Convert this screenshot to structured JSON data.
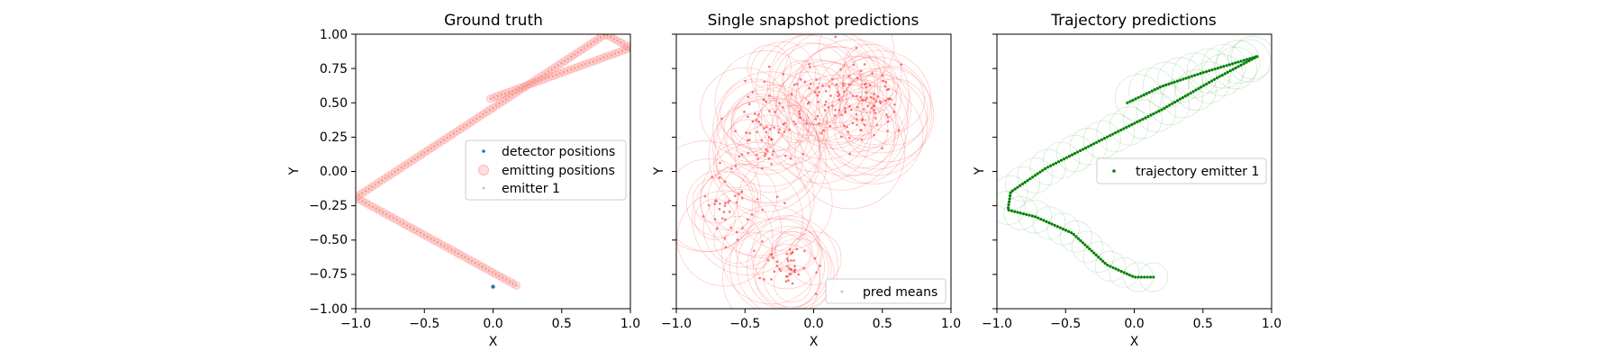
{
  "chart_data": [
    {
      "type": "scatter",
      "title": "Ground truth",
      "xlabel": "X",
      "ylabel": "Y",
      "xlim": [
        -1.0,
        1.0
      ],
      "ylim": [
        -1.0,
        1.0
      ],
      "xticks": [
        "−1.0",
        "−0.5",
        "0.0",
        "0.5",
        "1.0"
      ],
      "yticks": [
        "−1.00",
        "−0.75",
        "−0.50",
        "−0.25",
        "0.00",
        "0.25",
        "0.50",
        "0.75",
        "1.00"
      ],
      "legend_position": "center-right",
      "legend": [
        "detector positions",
        "emitting positions",
        "emitter 1"
      ],
      "series": [
        {
          "name": "detector positions",
          "color": "#1f77b4",
          "points": [
            [
              0.0,
              -0.84
            ]
          ]
        },
        {
          "name": "emitting positions",
          "color": "#ff9999",
          "path": [
            [
              0.17,
              -0.83
            ],
            [
              -1.0,
              -0.19
            ],
            [
              0.82,
              1.0
            ],
            [
              1.0,
              0.9
            ],
            [
              -0.02,
              0.53
            ]
          ]
        },
        {
          "name": "emitter 1",
          "color": "#e8a080",
          "path": [
            [
              0.17,
              -0.83
            ],
            [
              -1.0,
              -0.19
            ],
            [
              0.82,
              1.0
            ],
            [
              1.0,
              0.9
            ],
            [
              -0.02,
              0.53
            ]
          ]
        }
      ]
    },
    {
      "type": "scatter",
      "title": "Single snapshot predictions",
      "xlabel": "X",
      "ylabel": "Y",
      "xlim": [
        -1.0,
        1.0
      ],
      "ylim": [
        -1.0,
        1.0
      ],
      "xticks": [
        "−1.0",
        "−0.5",
        "0.0",
        "0.5",
        "1.0"
      ],
      "legend_position": "lower-right",
      "legend": [
        "pred means"
      ],
      "series": [
        {
          "name": "pred means",
          "color": "#ff4d4d",
          "clusters": [
            {
              "center": [
                -0.6,
                -0.3
              ],
              "spread": [
                0.1,
                0.18
              ],
              "count": 40
            },
            {
              "center": [
                -0.2,
                -0.7
              ],
              "spread": [
                0.12,
                0.08
              ],
              "count": 45
            },
            {
              "center": [
                -0.35,
                0.3
              ],
              "spread": [
                0.15,
                0.2
              ],
              "count": 55
            },
            {
              "center": [
                0.1,
                0.52
              ],
              "spread": [
                0.22,
                0.15
              ],
              "count": 90
            },
            {
              "center": [
                0.4,
                0.5
              ],
              "spread": [
                0.12,
                0.12
              ],
              "count": 50
            }
          ]
        }
      ]
    },
    {
      "type": "scatter",
      "title": "Trajectory predictions",
      "xlabel": "X",
      "ylabel": "Y",
      "xlim": [
        -1.0,
        1.0
      ],
      "ylim": [
        -1.0,
        1.0
      ],
      "xticks": [
        "−1.0",
        "−0.5",
        "0.0",
        "0.5",
        "1.0"
      ],
      "legend_position": "center-right",
      "legend": [
        "trajectory emitter 1"
      ],
      "series": [
        {
          "name": "trajectory emitter 1",
          "color": "#008000",
          "path": [
            [
              0.14,
              -0.77
            ],
            [
              0.0,
              -0.77
            ],
            [
              -0.2,
              -0.68
            ],
            [
              -0.45,
              -0.45
            ],
            [
              -0.72,
              -0.33
            ],
            [
              -0.92,
              -0.28
            ],
            [
              -0.9,
              -0.15
            ],
            [
              -0.65,
              0.02
            ],
            [
              -0.2,
              0.25
            ],
            [
              0.2,
              0.45
            ],
            [
              0.6,
              0.68
            ],
            [
              0.9,
              0.84
            ],
            [
              0.5,
              0.72
            ],
            [
              0.2,
              0.62
            ],
            [
              -0.05,
              0.5
            ]
          ]
        }
      ]
    }
  ]
}
